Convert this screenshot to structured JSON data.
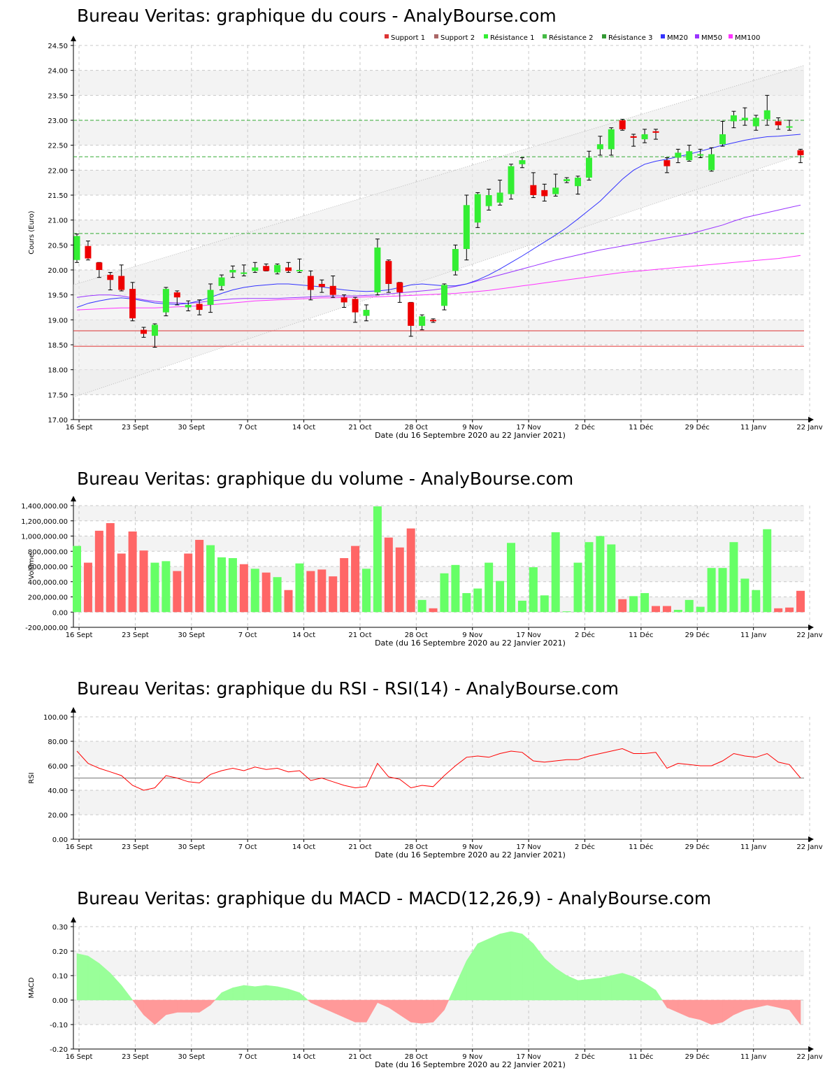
{
  "titles": {
    "price": "Bureau Veritas: graphique du cours - AnalyBourse.com",
    "volume": "Bureau Veritas: graphique du volume - AnalyBourse.com",
    "rsi": "Bureau Veritas: graphique du RSI - RSI(14) - AnalyBourse.com",
    "macd": "Bureau Veritas: graphique du MACD - MACD(12,26,9) - AnalyBourse.com"
  },
  "xlabel": "Date (du 16 Septembre 2020 au 22 Janvier 2021)",
  "x_ticks": [
    "16 Sept",
    "23 Sept",
    "30 Sept",
    "7 Oct",
    "14 Oct",
    "21 Oct",
    "28 Oct",
    "9 Nov",
    "17 Nov",
    "2 Déc",
    "11 Déc",
    "29 Déc",
    "11 Janv",
    "22 Janv"
  ],
  "colors": {
    "up": "#33ee33",
    "down": "#ee0000",
    "vol_up": "#66ff66",
    "vol_down": "#ff6666",
    "mm20": "#3333ff",
    "mm50": "#9933ff",
    "mm100": "#ff33ff",
    "support": "#dd3333",
    "resistance": "#33aa33",
    "rsi": "#ff0000",
    "macd_pos": "#99ff99",
    "macd_neg": "#ff9999"
  },
  "chart_data": [
    {
      "type": "candlestick",
      "title": "Bureau Veritas: graphique du cours - AnalyBourse.com",
      "ylabel": "Cours (Euro)",
      "ylim": [
        17.0,
        24.5
      ],
      "y_ticks": [
        "17.00",
        "17.50",
        "18.00",
        "18.50",
        "19.00",
        "19.50",
        "20.00",
        "20.50",
        "21.00",
        "21.50",
        "22.00",
        "22.50",
        "23.00",
        "23.50",
        "24.00",
        "24.50"
      ],
      "legend": [
        "Support 1",
        "Support 2",
        "Résistance 1",
        "Résistance 2",
        "Résistance 3",
        "MM20",
        "MM50",
        "MM100"
      ],
      "legend_position": "top-right",
      "levels": {
        "support_1": 18.78,
        "support_2": 18.47,
        "resistance_1": 20.73,
        "resistance_2": 22.27,
        "resistance_3": 23.0
      },
      "ohlc": [
        [
          20.2,
          20.72,
          20.15,
          20.68
        ],
        [
          20.48,
          20.58,
          20.2,
          20.23
        ],
        [
          20.15,
          20.15,
          19.85,
          20.0
        ],
        [
          19.9,
          19.95,
          19.6,
          19.8
        ],
        [
          19.88,
          20.1,
          19.58,
          19.6
        ],
        [
          19.62,
          19.75,
          18.98,
          19.03
        ],
        [
          18.8,
          18.85,
          18.65,
          18.72
        ],
        [
          18.68,
          18.92,
          18.45,
          18.9
        ],
        [
          19.15,
          19.65,
          19.08,
          19.62
        ],
        [
          19.55,
          19.58,
          19.3,
          19.45
        ],
        [
          19.25,
          19.38,
          19.18,
          19.3
        ],
        [
          19.32,
          19.4,
          19.1,
          19.2
        ],
        [
          19.3,
          19.72,
          19.15,
          19.6
        ],
        [
          19.68,
          19.9,
          19.6,
          19.85
        ],
        [
          19.95,
          20.08,
          19.85,
          20.0
        ],
        [
          19.92,
          20.1,
          19.88,
          19.95
        ],
        [
          19.98,
          20.15,
          19.95,
          20.05
        ],
        [
          20.08,
          20.12,
          19.98,
          19.98
        ],
        [
          19.95,
          20.12,
          19.92,
          20.1
        ],
        [
          20.05,
          20.15,
          19.95,
          19.98
        ],
        [
          20.0,
          20.22,
          19.95,
          20.0
        ],
        [
          19.88,
          19.98,
          19.4,
          19.6
        ],
        [
          19.72,
          19.8,
          19.55,
          19.66
        ],
        [
          19.68,
          19.88,
          19.45,
          19.5
        ],
        [
          19.45,
          19.5,
          19.25,
          19.35
        ],
        [
          19.42,
          19.45,
          18.95,
          19.15
        ],
        [
          19.08,
          19.3,
          18.98,
          19.2
        ],
        [
          19.55,
          20.62,
          19.5,
          20.45
        ],
        [
          20.18,
          20.2,
          19.55,
          19.72
        ],
        [
          19.75,
          19.75,
          19.35,
          19.55
        ],
        [
          19.35,
          19.35,
          18.67,
          18.88
        ],
        [
          18.88,
          19.1,
          18.8,
          19.07
        ],
        [
          19.0,
          19.02,
          18.95,
          18.98
        ],
        [
          19.28,
          19.72,
          19.2,
          19.7
        ],
        [
          19.98,
          20.5,
          19.9,
          20.42
        ],
        [
          20.42,
          21.5,
          20.2,
          21.3
        ],
        [
          20.95,
          21.55,
          20.85,
          21.52
        ],
        [
          21.28,
          21.62,
          21.2,
          21.5
        ],
        [
          21.35,
          21.8,
          21.3,
          21.55
        ],
        [
          21.52,
          22.12,
          21.42,
          22.08
        ],
        [
          22.12,
          22.25,
          22.05,
          22.2
        ],
        [
          21.7,
          21.95,
          21.45,
          21.5
        ],
        [
          21.6,
          21.72,
          21.38,
          21.48
        ],
        [
          21.52,
          21.92,
          21.48,
          21.65
        ],
        [
          21.78,
          21.85,
          21.75,
          21.82
        ],
        [
          21.68,
          21.88,
          21.52,
          21.85
        ],
        [
          21.85,
          22.38,
          21.8,
          22.25
        ],
        [
          22.42,
          22.68,
          22.3,
          22.52
        ],
        [
          22.42,
          22.85,
          22.3,
          22.82
        ],
        [
          23.0,
          23.02,
          22.8,
          22.82
        ],
        [
          22.68,
          22.72,
          22.48,
          22.65
        ],
        [
          22.62,
          22.82,
          22.55,
          22.72
        ],
        [
          22.78,
          22.82,
          22.62,
          22.75
        ],
        [
          22.2,
          22.25,
          21.95,
          22.08
        ],
        [
          22.25,
          22.42,
          22.15,
          22.35
        ],
        [
          22.2,
          22.5,
          22.18,
          22.38
        ],
        [
          22.32,
          22.42,
          22.25,
          22.32
        ],
        [
          22.0,
          22.45,
          21.98,
          22.32
        ],
        [
          22.52,
          22.98,
          22.48,
          22.72
        ],
        [
          22.98,
          23.18,
          22.85,
          23.1
        ],
        [
          23.0,
          23.25,
          22.9,
          23.05
        ],
        [
          22.88,
          23.1,
          22.8,
          23.05
        ],
        [
          23.02,
          23.5,
          22.9,
          23.2
        ],
        [
          22.98,
          23.05,
          22.82,
          22.9
        ],
        [
          22.88,
          23.0,
          22.8,
          22.88
        ],
        [
          22.4,
          22.42,
          22.15,
          22.3
        ]
      ],
      "mm20": [
        19.25,
        19.33,
        19.38,
        19.42,
        19.44,
        19.42,
        19.38,
        19.34,
        19.32,
        19.31,
        19.33,
        19.38,
        19.45,
        19.53,
        19.6,
        19.65,
        19.68,
        19.7,
        19.72,
        19.72,
        19.7,
        19.68,
        19.66,
        19.63,
        19.6,
        19.58,
        19.57,
        19.58,
        19.6,
        19.65,
        19.7,
        19.72,
        19.7,
        19.68,
        19.68,
        19.72,
        19.8,
        19.9,
        20.02,
        20.15,
        20.28,
        20.42,
        20.56,
        20.7,
        20.85,
        21.02,
        21.2,
        21.38,
        21.6,
        21.82,
        22.0,
        22.12,
        22.18,
        22.22,
        22.27,
        22.32,
        22.38,
        22.44,
        22.5,
        22.55,
        22.6,
        22.64,
        22.67,
        22.68,
        22.7,
        22.72
      ],
      "mm50": [
        19.45,
        19.48,
        19.5,
        19.5,
        19.48,
        19.44,
        19.4,
        19.37,
        19.35,
        19.34,
        19.33,
        19.35,
        19.38,
        19.4,
        19.42,
        19.43,
        19.43,
        19.43,
        19.43,
        19.44,
        19.45,
        19.46,
        19.47,
        19.48,
        19.48,
        19.48,
        19.49,
        19.5,
        19.52,
        19.54,
        19.56,
        19.58,
        19.6,
        19.63,
        19.67,
        19.72,
        19.78,
        19.84,
        19.9,
        19.96,
        20.02,
        20.08,
        20.14,
        20.2,
        20.25,
        20.3,
        20.35,
        20.4,
        20.44,
        20.48,
        20.52,
        20.56,
        20.6,
        20.64,
        20.68,
        20.72,
        20.78,
        20.84,
        20.9,
        20.98,
        21.05,
        21.1,
        21.15,
        21.2,
        21.25,
        21.3
      ],
      "mm100": [
        19.2,
        19.21,
        19.22,
        19.23,
        19.24,
        19.24,
        19.24,
        19.24,
        19.25,
        19.26,
        19.27,
        19.28,
        19.3,
        19.32,
        19.34,
        19.36,
        19.38,
        19.39,
        19.4,
        19.41,
        19.42,
        19.43,
        19.44,
        19.44,
        19.45,
        19.45,
        19.46,
        19.46,
        19.47,
        19.48,
        19.49,
        19.5,
        19.51,
        19.52,
        19.53,
        19.55,
        19.57,
        19.59,
        19.62,
        19.65,
        19.68,
        19.71,
        19.74,
        19.77,
        19.8,
        19.83,
        19.86,
        19.89,
        19.92,
        19.95,
        19.97,
        19.99,
        20.01,
        20.03,
        20.05,
        20.07,
        20.09,
        20.11,
        20.13,
        20.15,
        20.17,
        20.19,
        20.21,
        20.23,
        20.26,
        20.29
      ]
    },
    {
      "type": "bar",
      "title": "Bureau Veritas: graphique du volume - AnalyBourse.com",
      "ylabel": "Volume",
      "ylim": [
        -200000,
        1400000
      ],
      "y_ticks": [
        "-200,000.00",
        "0.00",
        "200,000.00",
        "400,000.00",
        "600,000.00",
        "800,000.00",
        "1,000,000.00",
        "1,200,000.00",
        "1,400,000.00"
      ],
      "values": [
        870000,
        650000,
        1070000,
        1170000,
        770000,
        1060000,
        810000,
        650000,
        670000,
        540000,
        770000,
        950000,
        880000,
        720000,
        710000,
        630000,
        570000,
        520000,
        460000,
        290000,
        640000,
        540000,
        560000,
        470000,
        710000,
        870000,
        570000,
        1390000,
        980000,
        850000,
        1100000,
        160000,
        50000,
        510000,
        620000,
        250000,
        310000,
        650000,
        410000,
        910000,
        150000,
        590000,
        220000,
        1050000,
        10000,
        650000,
        920000,
        1000000,
        890000,
        170000,
        210000,
        250000,
        80000,
        80000,
        30000,
        160000,
        70000,
        580000,
        580000,
        920000,
        440000,
        290000,
        1090000,
        50000,
        60000,
        280000
      ],
      "direction": [
        "up",
        "down",
        "down",
        "down",
        "down",
        "down",
        "down",
        "up",
        "up",
        "down",
        "down",
        "down",
        "up",
        "up",
        "up",
        "down",
        "up",
        "down",
        "up",
        "down",
        "up",
        "down",
        "down",
        "down",
        "down",
        "down",
        "up",
        "up",
        "down",
        "down",
        "down",
        "up",
        "down",
        "up",
        "up",
        "up",
        "up",
        "up",
        "up",
        "up",
        "up",
        "up",
        "up",
        "up",
        "up",
        "up",
        "up",
        "up",
        "up",
        "down",
        "up",
        "up",
        "down",
        "down",
        "up",
        "up",
        "up",
        "up",
        "up",
        "up",
        "up",
        "up",
        "up",
        "down",
        "down",
        "down"
      ]
    },
    {
      "type": "line",
      "title": "Bureau Veritas: graphique du RSI - RSI(14) - AnalyBourse.com",
      "ylabel": "RSI",
      "ylim": [
        0,
        100
      ],
      "y_ticks": [
        "0.00",
        "20.00",
        "40.00",
        "60.00",
        "80.00",
        "100.00"
      ],
      "reference": 50,
      "values": [
        72,
        62,
        58,
        55,
        52,
        44,
        40,
        42,
        52,
        50,
        47,
        46,
        53,
        56,
        58,
        56,
        59,
        57,
        58,
        55,
        56,
        48,
        50,
        47,
        44,
        42,
        43,
        62,
        51,
        49,
        42,
        44,
        43,
        52,
        60,
        67,
        68,
        67,
        70,
        72,
        71,
        64,
        63,
        64,
        65,
        65,
        68,
        70,
        72,
        74,
        70,
        70,
        71,
        58,
        62,
        61,
        60,
        60,
        64,
        70,
        68,
        67,
        70,
        63,
        61,
        50
      ]
    },
    {
      "type": "area",
      "title": "Bureau Veritas: graphique du MACD - MACD(12,26,9) - AnalyBourse.com",
      "ylabel": "MACD",
      "ylim": [
        -0.2,
        0.3
      ],
      "y_ticks": [
        "-0.20",
        "-0.10",
        "0.00",
        "0.10",
        "0.20",
        "0.30"
      ],
      "values": [
        0.19,
        0.18,
        0.15,
        0.11,
        0.06,
        0.0,
        -0.06,
        -0.1,
        -0.06,
        -0.05,
        -0.05,
        -0.05,
        -0.02,
        0.03,
        0.05,
        0.06,
        0.055,
        0.06,
        0.055,
        0.045,
        0.03,
        -0.01,
        -0.03,
        -0.05,
        -0.07,
        -0.09,
        -0.09,
        -0.01,
        -0.03,
        -0.06,
        -0.09,
        -0.095,
        -0.09,
        -0.04,
        0.06,
        0.16,
        0.23,
        0.25,
        0.27,
        0.28,
        0.27,
        0.23,
        0.17,
        0.13,
        0.1,
        0.08,
        0.085,
        0.09,
        0.1,
        0.11,
        0.095,
        0.07,
        0.04,
        -0.03,
        -0.05,
        -0.07,
        -0.08,
        -0.1,
        -0.09,
        -0.06,
        -0.04,
        -0.03,
        -0.02,
        -0.03,
        -0.04,
        -0.1
      ]
    }
  ]
}
